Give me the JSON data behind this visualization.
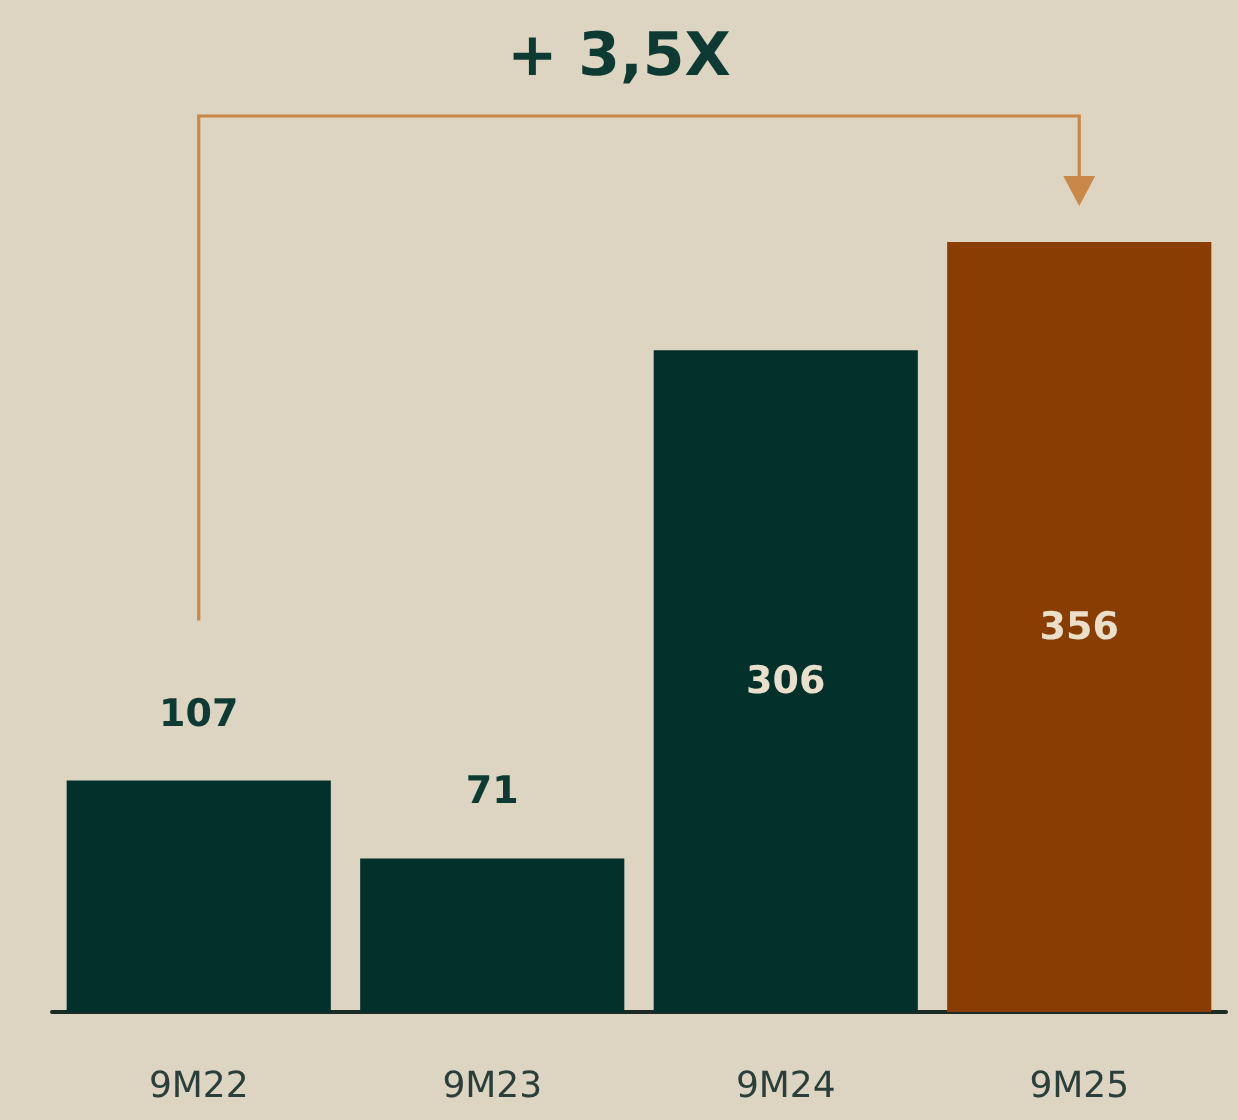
{
  "chart_data": {
    "type": "bar",
    "categories": [
      "9M22",
      "9M23",
      "9M24",
      "9M25"
    ],
    "values": [
      107,
      71,
      306,
      356
    ],
    "colors": [
      "#02302a",
      "#02302a",
      "#02302a",
      "#8a3d00"
    ],
    "data_labels": true,
    "annotations": [
      "+ 3,5X"
    ]
  }
}
